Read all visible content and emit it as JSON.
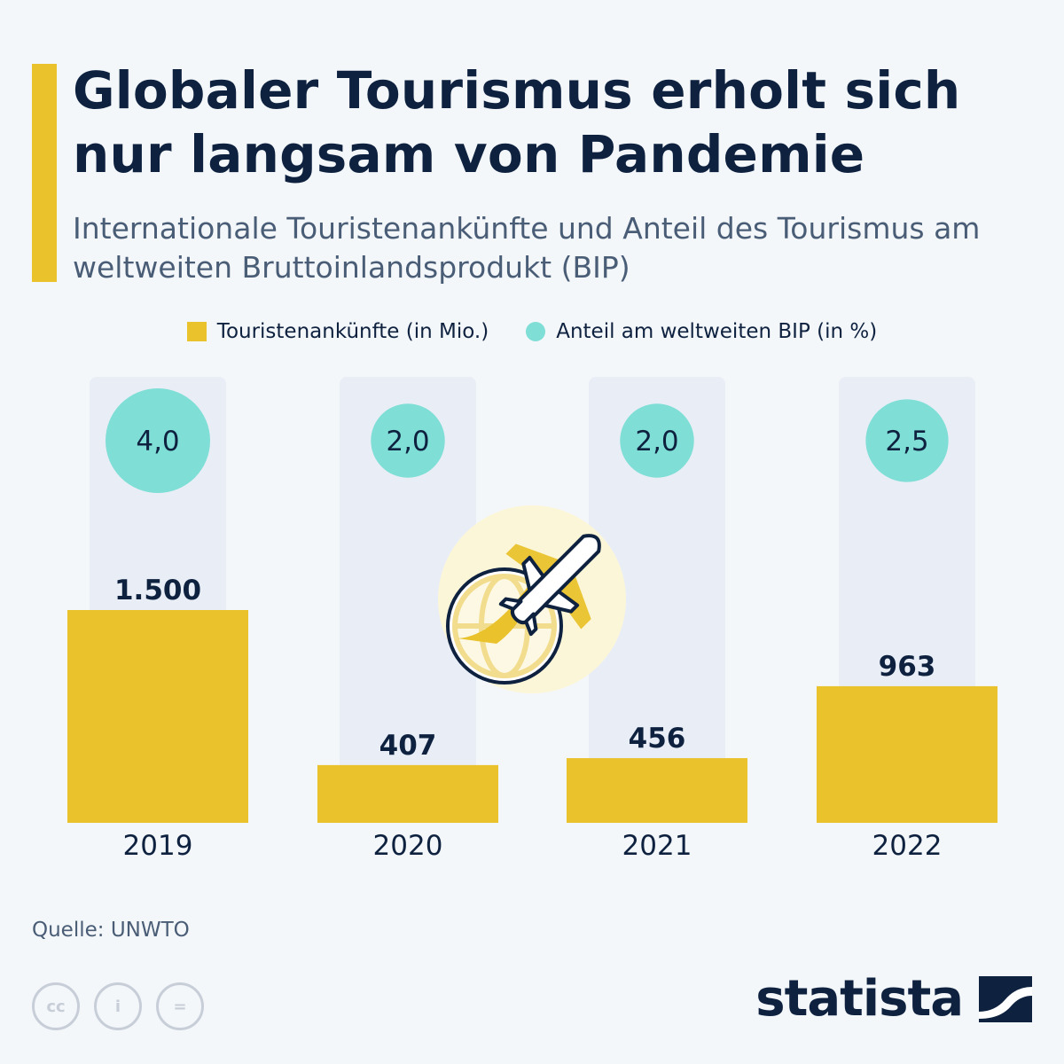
{
  "header": {
    "title": "Globaler Tourismus erholt sich nur langsam von Pandemie",
    "subtitle": "Internationale Touristenankünfte und Anteil des Tourismus am weltweiten Bruttoinlandsprodukt (BIP)"
  },
  "legend": {
    "arrivals_label": "Touristenankünfte (in Mio.)",
    "gdp_label": "Anteil am weltweiten BIP (in %)"
  },
  "chart_data": {
    "type": "bar",
    "title": "Globaler Tourismus erholt sich nur langsam von Pandemie",
    "subtitle": "Internationale Touristenankünfte und Anteil des Tourismus am weltweiten Bruttoinlandsprodukt (BIP)",
    "categories": [
      "2019",
      "2020",
      "2021",
      "2022"
    ],
    "series": [
      {
        "name": "Touristenankünfte (in Mio.)",
        "values": [
          1500,
          407,
          456,
          963
        ],
        "labels": [
          "1.500",
          "407",
          "456",
          "963"
        ],
        "color": "#e9c22c"
      },
      {
        "name": "Anteil am weltweiten BIP (in %)",
        "values": [
          4.0,
          2.0,
          2.0,
          2.5
        ],
        "labels": [
          "4,0",
          "2,0",
          "2,0",
          "2,5"
        ],
        "color": "#7fded6"
      }
    ],
    "xlabel": "",
    "ylabel": "",
    "ylim": [
      0,
      1500
    ],
    "grid": false,
    "legend_position": "top-center"
  },
  "colors": {
    "accent": "#e9c22c",
    "bar": "#e9c22c",
    "circle": "#7fded6",
    "column_bg": "#e9eef6",
    "text_dark": "#0e2240",
    "text_muted": "#4a5d76",
    "background": "#f4f7fa"
  },
  "footer": {
    "source": "Quelle: UNWTO",
    "brand": "statista",
    "cc_icons": [
      "cc-icon",
      "by-icon",
      "nd-icon"
    ],
    "cc_glyphs": [
      "cc",
      "i",
      "="
    ]
  }
}
